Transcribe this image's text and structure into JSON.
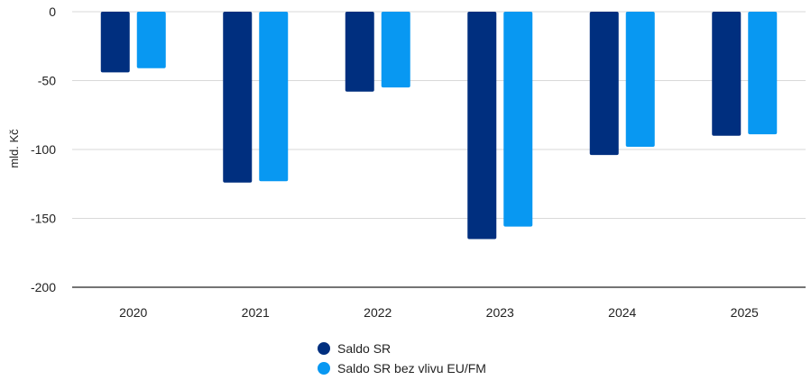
{
  "chart_data": {
    "type": "bar",
    "categories": [
      "2020",
      "2021",
      "2022",
      "2023",
      "2024",
      "2025"
    ],
    "series": [
      {
        "name": "Saldo SR",
        "color": "#002f7f",
        "values": [
          -44,
          -124,
          -58,
          -165,
          -104,
          -90
        ]
      },
      {
        "name": "Saldo SR bez vlivu EU/FM",
        "color": "#0898f2",
        "values": [
          -41,
          -123,
          -55,
          -156,
          -98,
          -89
        ]
      }
    ],
    "ylabel": "mld. Kč",
    "ylim": [
      -200,
      0
    ],
    "yticks": [
      0,
      -50,
      -100,
      -150,
      -200
    ],
    "ytick_labels": [
      "0",
      "-50",
      "-100",
      "-150",
      "-200"
    ],
    "grid": true,
    "legend_position": "bottom-center"
  }
}
